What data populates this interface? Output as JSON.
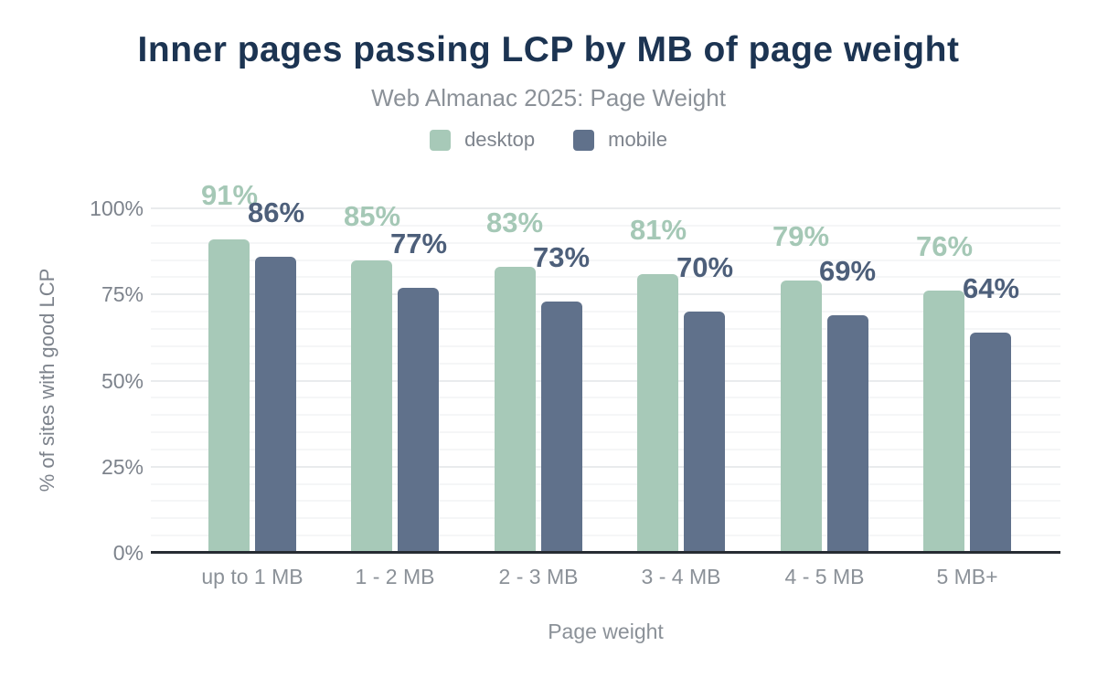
{
  "chart_data": {
    "type": "bar",
    "title": "Inner pages passing LCP by MB of page weight",
    "subtitle": "Web Almanac 2025: Page Weight",
    "categories": [
      "up to 1 MB",
      "1 - 2 MB",
      "2 - 3 MB",
      "3 - 4 MB",
      "4 - 5 MB",
      "5 MB+"
    ],
    "series": [
      {
        "name": "desktop",
        "color": "#a7c9b8",
        "label_color": "#a5c8b6",
        "values": [
          91,
          85,
          83,
          81,
          79,
          76
        ]
      },
      {
        "name": "mobile",
        "color": "#60718b",
        "label_color": "#4d5f7a",
        "values": [
          86,
          77,
          73,
          70,
          69,
          64
        ]
      }
    ],
    "value_suffix": "%",
    "xlabel": "Page weight",
    "ylabel": "% of sites with good LCP",
    "ylim": [
      0,
      100
    ],
    "yticks": [
      0,
      25,
      50,
      75,
      100
    ],
    "ytick_suffix": "%",
    "grid_minor_step_pct": 5,
    "grid_major_step_pct": 25,
    "legend_position": "top",
    "colors": {
      "title": "#1c3452",
      "subtitle_gray": "#8b9198",
      "axis_text_gray": "#7d838c",
      "axis_line": "#272c33",
      "grid_minor": "#f5f6f7",
      "grid_major": "#e9ebed",
      "background": "#ffffff"
    }
  }
}
